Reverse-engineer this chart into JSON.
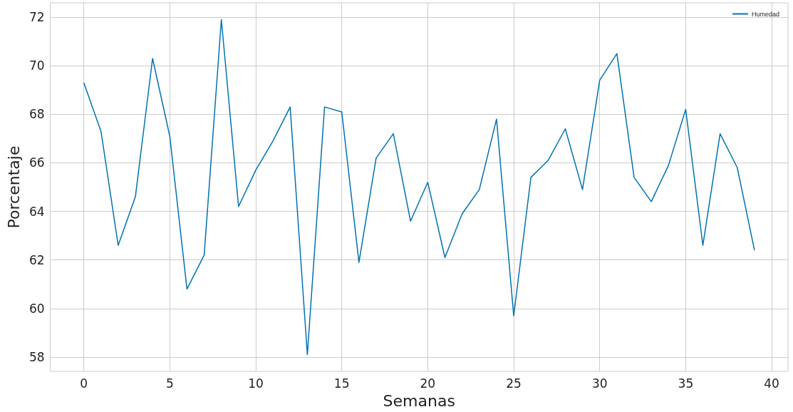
{
  "chart_data": {
    "type": "line",
    "xlabel": "Semanas",
    "ylabel": "Porcentaje",
    "x": [
      0,
      1,
      2,
      3,
      4,
      5,
      6,
      7,
      8,
      9,
      10,
      11,
      12,
      13,
      14,
      15,
      16,
      17,
      18,
      19,
      20,
      21,
      22,
      23,
      24,
      25,
      26,
      27,
      28,
      29,
      30,
      31,
      32,
      33,
      34,
      35,
      36,
      37,
      38,
      39
    ],
    "series": [
      {
        "name": "Humedad",
        "color": "#0072b2",
        "values": [
          69.3,
          67.3,
          62.6,
          64.6,
          70.3,
          67.1,
          60.8,
          62.2,
          71.9,
          64.2,
          65.7,
          66.9,
          68.3,
          58.1,
          68.3,
          68.1,
          61.9,
          66.2,
          67.2,
          63.6,
          65.2,
          62.1,
          63.9,
          64.9,
          67.8,
          59.7,
          65.4,
          66.1,
          67.4,
          64.9,
          69.4,
          70.5,
          65.4,
          64.4,
          65.9,
          68.2,
          62.6,
          67.2,
          65.8,
          62.4
        ]
      }
    ],
    "xlim": [
      -1.95,
      40.95
    ],
    "xticks": [
      0,
      5,
      10,
      15,
      20,
      25,
      30,
      35,
      40
    ],
    "ylim": [
      57.41,
      72.59
    ],
    "yticks": [
      58,
      60,
      62,
      64,
      66,
      68,
      70,
      72
    ],
    "grid": true,
    "legend": "top right",
    "marker": "none",
    "line_style": "solid"
  }
}
